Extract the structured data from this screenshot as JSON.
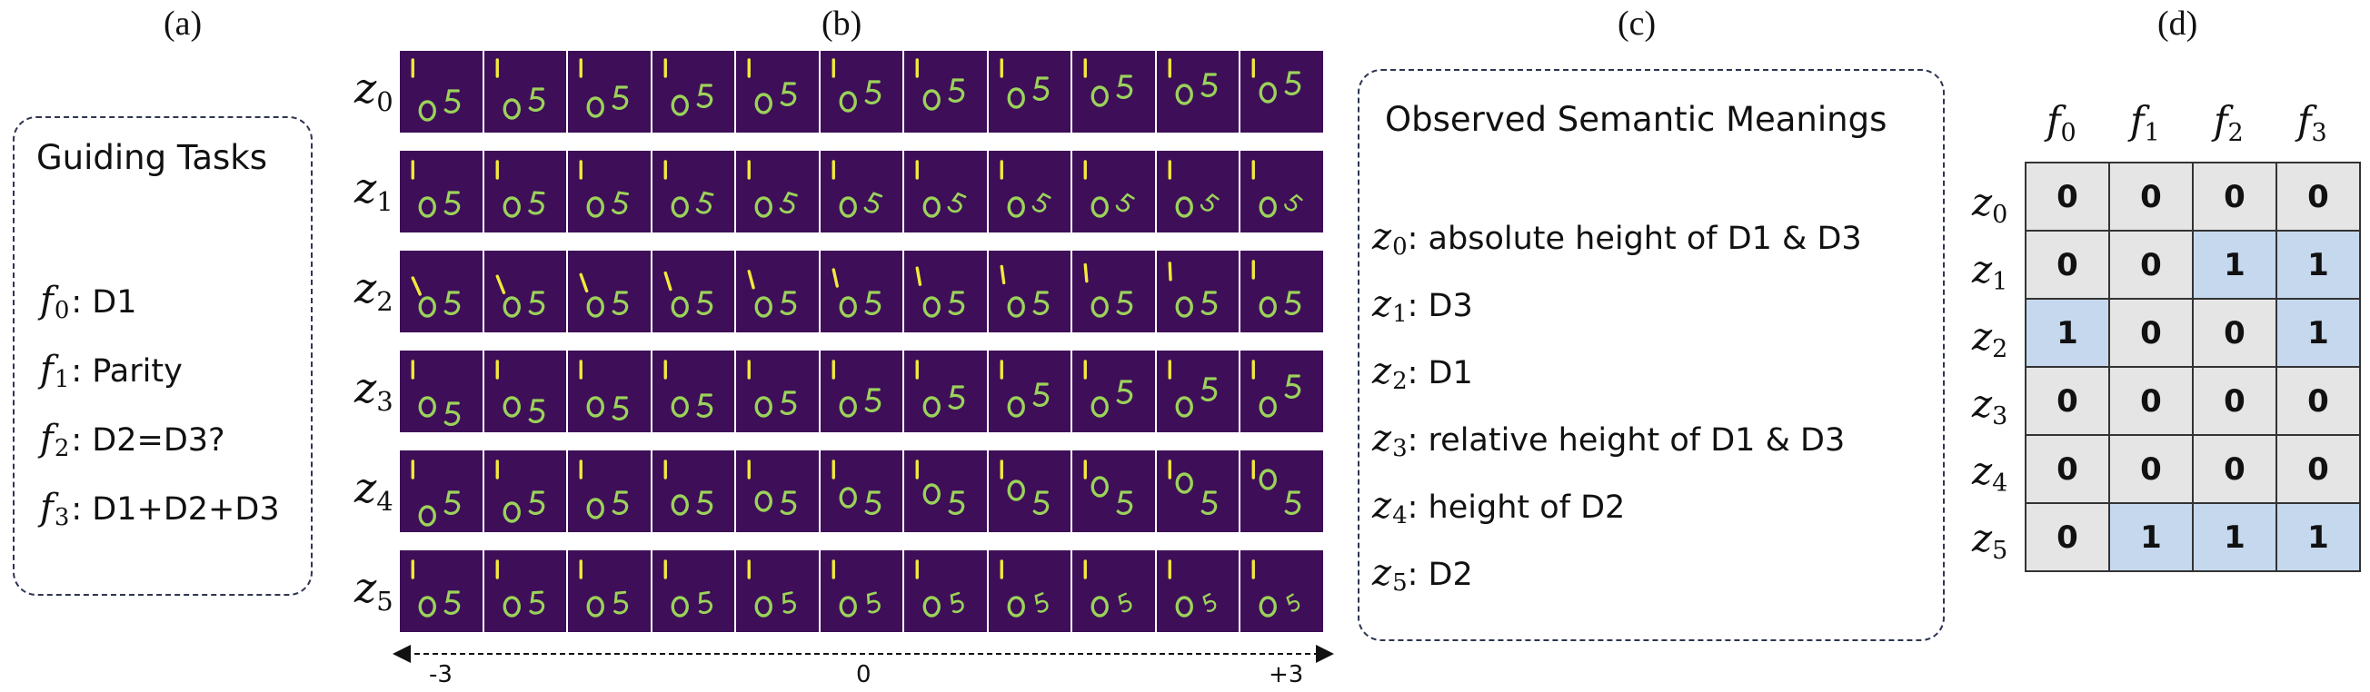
{
  "panel_labels": {
    "a": "(a)",
    "b": "(b)",
    "c": "(c)",
    "d": "(d)"
  },
  "guiding_tasks": {
    "title": "Guiding Tasks",
    "items": [
      {
        "var": "f",
        "sub": "0",
        "text": ": D1"
      },
      {
        "var": "f",
        "sub": "1",
        "text": ": Parity"
      },
      {
        "var": "f",
        "sub": "2",
        "text": ": D2=D3?"
      },
      {
        "var": "f",
        "sub": "3",
        "text": ": D1+D2+D3"
      }
    ]
  },
  "traversal": {
    "rows": [
      {
        "var": "z",
        "sub": "0"
      },
      {
        "var": "z",
        "sub": "1"
      },
      {
        "var": "z",
        "sub": "2"
      },
      {
        "var": "z",
        "sub": "3"
      },
      {
        "var": "z",
        "sub": "4"
      },
      {
        "var": "z",
        "sub": "5"
      }
    ],
    "frames_per_row": 11,
    "axis": {
      "left": "-3",
      "center": "0",
      "right": "+3"
    },
    "colors": {
      "background": "#3e0f58",
      "digit": "#9bd25a",
      "digit_bright": "#f4e83a"
    }
  },
  "semantic_meanings": {
    "title": "Observed Semantic Meanings",
    "items": [
      {
        "var": "z",
        "sub": "0",
        "text": ": absolute height of D1 & D3"
      },
      {
        "var": "z",
        "sub": "1",
        "text": ": D3"
      },
      {
        "var": "z",
        "sub": "2",
        "text": ": D1"
      },
      {
        "var": "z",
        "sub": "3",
        "text": ": relative height of D1 & D3"
      },
      {
        "var": "z",
        "sub": "4",
        "text": ": height of D2"
      },
      {
        "var": "z",
        "sub": "5",
        "text": ": D2"
      }
    ]
  },
  "matrix": {
    "columns": [
      {
        "var": "f",
        "sub": "0"
      },
      {
        "var": "f",
        "sub": "1"
      },
      {
        "var": "f",
        "sub": "2"
      },
      {
        "var": "f",
        "sub": "3"
      }
    ],
    "rows": [
      {
        "var": "z",
        "sub": "0",
        "values": [
          "0",
          "0",
          "0",
          "0"
        ]
      },
      {
        "var": "z",
        "sub": "1",
        "values": [
          "0",
          "0",
          "1",
          "1"
        ]
      },
      {
        "var": "z",
        "sub": "2",
        "values": [
          "1",
          "0",
          "0",
          "1"
        ]
      },
      {
        "var": "z",
        "sub": "3",
        "values": [
          "0",
          "0",
          "0",
          "0"
        ]
      },
      {
        "var": "z",
        "sub": "4",
        "values": [
          "0",
          "0",
          "0",
          "0"
        ]
      },
      {
        "var": "z",
        "sub": "5",
        "values": [
          "0",
          "1",
          "1",
          "1"
        ]
      }
    ],
    "colors": {
      "zero": "#e5e5e5",
      "one": "#c5d8ee"
    }
  }
}
